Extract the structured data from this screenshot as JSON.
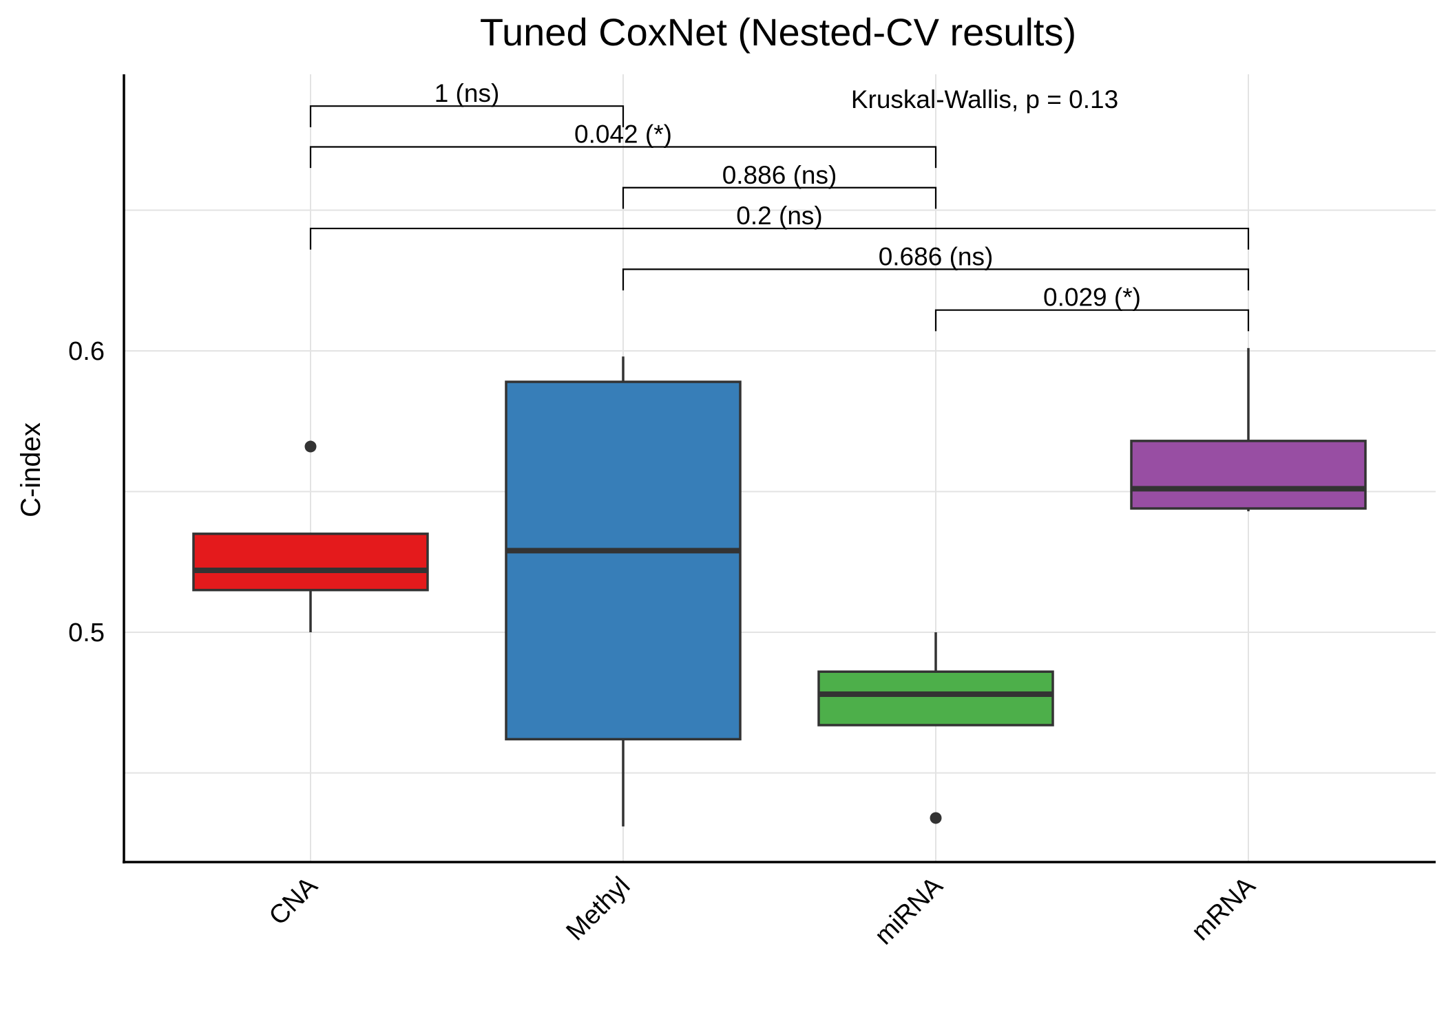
{
  "chart_data": {
    "type": "box",
    "title": "Tuned CoxNet (Nested-CV results)",
    "xlabel": "",
    "ylabel": "C-index",
    "ylim": [
      0.418,
      0.7
    ],
    "yticks": [
      0.5,
      0.6
    ],
    "ytick_labels": [
      "0.5",
      "0.6"
    ],
    "minor_gridlines": [
      0.45,
      0.55,
      0.65
    ],
    "grid": true,
    "categories": [
      "CNA",
      "Methyl",
      "miRNA",
      "mRNA"
    ],
    "boxes": [
      {
        "category": "CNA",
        "color": "#E41A1C",
        "lower_whisker": 0.5,
        "q1": 0.515,
        "median": 0.522,
        "q3": 0.535,
        "upper_whisker": 0.535,
        "outliers": [
          0.566
        ]
      },
      {
        "category": "Methyl",
        "color": "#377EB8",
        "lower_whisker": 0.431,
        "q1": 0.462,
        "median": 0.529,
        "q3": 0.589,
        "upper_whisker": 0.598,
        "outliers": []
      },
      {
        "category": "miRNA",
        "color": "#4DAF4A",
        "lower_whisker": 0.467,
        "q1": 0.467,
        "median": 0.478,
        "q3": 0.486,
        "upper_whisker": 0.5,
        "outliers": [
          0.434
        ]
      },
      {
        "category": "mRNA",
        "color": "#984EA3",
        "lower_whisker": 0.543,
        "q1": 0.544,
        "median": 0.551,
        "q3": 0.568,
        "upper_whisker": 0.601,
        "outliers": []
      }
    ],
    "global_test": {
      "label": "Kruskal-Wallis, p = 0.13"
    },
    "comparisons": [
      {
        "group1": "CNA",
        "group2": "Methyl",
        "label": "1 (ns)",
        "y": 0.687
      },
      {
        "group1": "CNA",
        "group2": "miRNA",
        "label": "0.042 (*)",
        "y": 0.6725
      },
      {
        "group1": "Methyl",
        "group2": "miRNA",
        "label": "0.886 (ns)",
        "y": 0.658
      },
      {
        "group1": "CNA",
        "group2": "mRNA",
        "label": "0.2 (ns)",
        "y": 0.6435
      },
      {
        "group1": "Methyl",
        "group2": "mRNA",
        "label": "0.686 (ns)",
        "y": 0.629
      },
      {
        "group1": "miRNA",
        "group2": "mRNA",
        "label": "0.029 (*)",
        "y": 0.6145
      }
    ]
  }
}
